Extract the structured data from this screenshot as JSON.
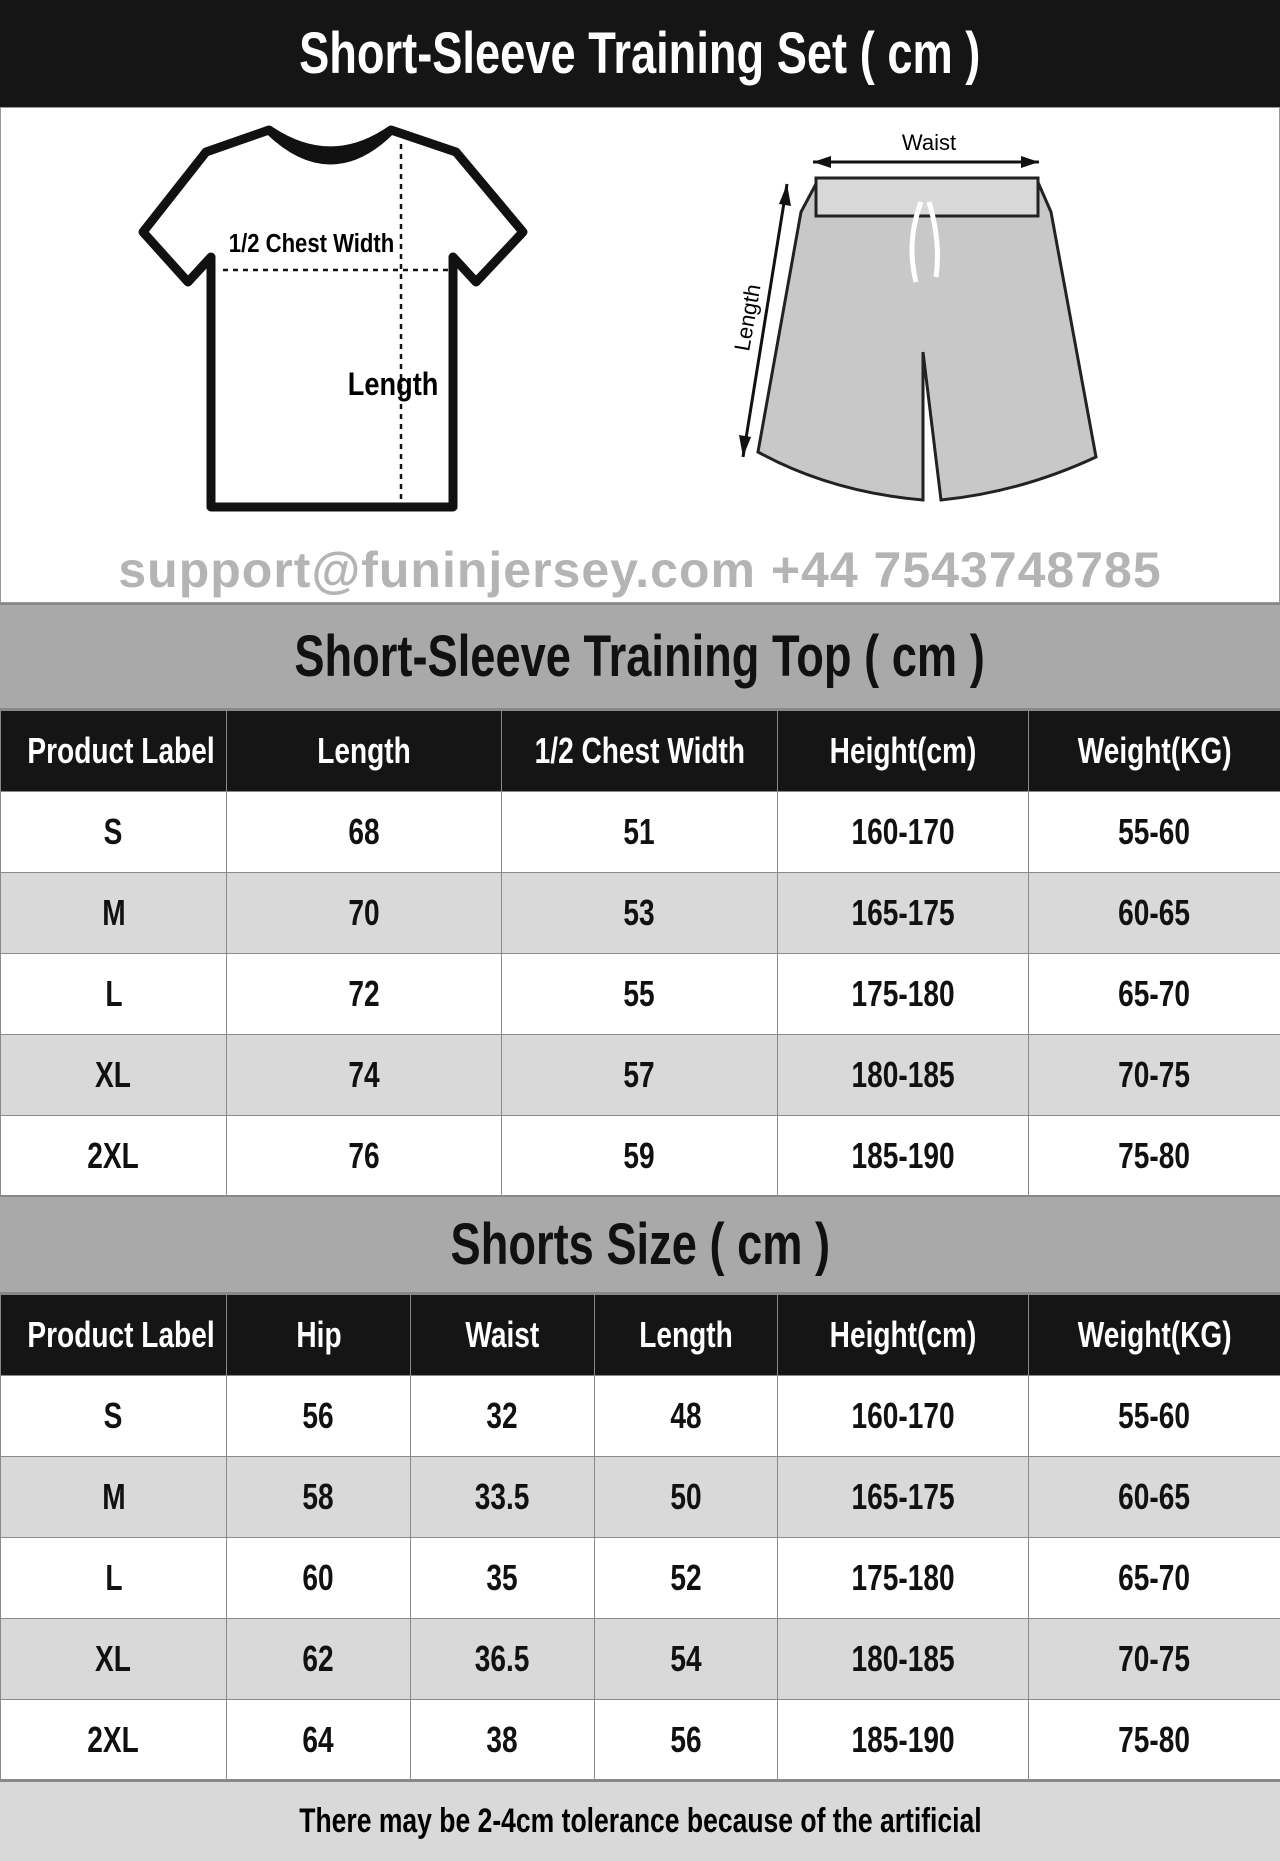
{
  "title": "Short-Sleeve Training Set ( cm )",
  "illustration": {
    "shirt_chest_label": "1/2 Chest Width",
    "shirt_length_label": "Length",
    "shorts_waist_label": "Waist",
    "shorts_length_label": "Length"
  },
  "top": {
    "title": "Short-Sleeve Training Top ( cm )",
    "headers": [
      "Product Label",
      "Length",
      "1/2 Chest Width",
      "Height(cm)",
      "Weight(KG)"
    ],
    "rows": [
      [
        "S",
        "68",
        "51",
        "160-170",
        "55-60"
      ],
      [
        "M",
        "70",
        "53",
        "165-175",
        "60-65"
      ],
      [
        "L",
        "72",
        "55",
        "175-180",
        "65-70"
      ],
      [
        "XL",
        "74",
        "57",
        "180-185",
        "70-75"
      ],
      [
        "2XL",
        "76",
        "59",
        "185-190",
        "75-80"
      ]
    ]
  },
  "shorts": {
    "title": "Shorts Size ( cm )",
    "headers": [
      "Product Label",
      "Hip",
      "Waist",
      "Length",
      "Height(cm)",
      "Weight(KG)"
    ],
    "rows": [
      [
        "S",
        "56",
        "32",
        "48",
        "160-170",
        "55-60"
      ],
      [
        "M",
        "58",
        "33.5",
        "50",
        "165-175",
        "60-65"
      ],
      [
        "L",
        "60",
        "35",
        "52",
        "175-180",
        "65-70"
      ],
      [
        "XL",
        "62",
        "36.5",
        "54",
        "180-185",
        "70-75"
      ],
      [
        "2XL",
        "64",
        "38",
        "56",
        "185-190",
        "75-80"
      ]
    ]
  },
  "footer": "There may be 2-4cm tolerance because of the artificial",
  "watermark": "support@funinjersey.com +44 7543748785"
}
